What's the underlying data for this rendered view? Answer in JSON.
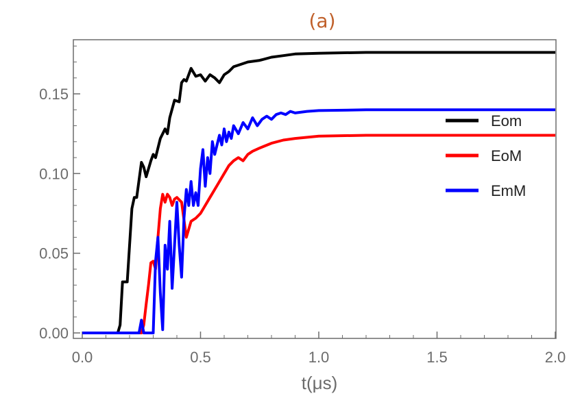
{
  "chart_data": {
    "type": "line",
    "title": "(a)",
    "xlabel": "t(μs)",
    "ylabel": "",
    "xlim": [
      0,
      2.0
    ],
    "ylim": [
      0,
      0.18
    ],
    "x_ticks": [
      "0.0",
      "0.5",
      "1.0",
      "1.5",
      "2.0"
    ],
    "y_ticks": [
      "0.00",
      "0.05",
      "0.10",
      "0.15"
    ],
    "grid": false,
    "legend_position": "right",
    "series": [
      {
        "name": "Eom",
        "color": "#000000",
        "points": [
          [
            0,
            0
          ],
          [
            0.05,
            0
          ],
          [
            0.1,
            0
          ],
          [
            0.15,
            0
          ],
          [
            0.16,
            0.005
          ],
          [
            0.17,
            0.032
          ],
          [
            0.19,
            0.032
          ],
          [
            0.2,
            0.055
          ],
          [
            0.21,
            0.078
          ],
          [
            0.22,
            0.085
          ],
          [
            0.23,
            0.085
          ],
          [
            0.25,
            0.107
          ],
          [
            0.26,
            0.104
          ],
          [
            0.27,
            0.098
          ],
          [
            0.29,
            0.108
          ],
          [
            0.3,
            0.112
          ],
          [
            0.31,
            0.11
          ],
          [
            0.33,
            0.122
          ],
          [
            0.35,
            0.128
          ],
          [
            0.36,
            0.125
          ],
          [
            0.37,
            0.135
          ],
          [
            0.39,
            0.146
          ],
          [
            0.41,
            0.145
          ],
          [
            0.42,
            0.157
          ],
          [
            0.43,
            0.159
          ],
          [
            0.44,
            0.158
          ],
          [
            0.46,
            0.166
          ],
          [
            0.48,
            0.161
          ],
          [
            0.5,
            0.162
          ],
          [
            0.52,
            0.158
          ],
          [
            0.54,
            0.162
          ],
          [
            0.56,
            0.16
          ],
          [
            0.58,
            0.157
          ],
          [
            0.6,
            0.162
          ],
          [
            0.62,
            0.164
          ],
          [
            0.64,
            0.167
          ],
          [
            0.66,
            0.168
          ],
          [
            0.7,
            0.17
          ],
          [
            0.75,
            0.171
          ],
          [
            0.8,
            0.173
          ],
          [
            0.85,
            0.174
          ],
          [
            0.9,
            0.175
          ],
          [
            1.0,
            0.1755
          ],
          [
            1.2,
            0.176
          ],
          [
            1.5,
            0.176
          ],
          [
            2.0,
            0.176
          ]
        ]
      },
      {
        "name": "EoM",
        "color": "#ff0000",
        "points": [
          [
            0,
            0
          ],
          [
            0.1,
            0
          ],
          [
            0.2,
            0
          ],
          [
            0.25,
            0
          ],
          [
            0.26,
            0.005
          ],
          [
            0.27,
            0.018
          ],
          [
            0.28,
            0.03
          ],
          [
            0.29,
            0.044
          ],
          [
            0.3,
            0.045
          ],
          [
            0.31,
            0.04
          ],
          [
            0.32,
            0.06
          ],
          [
            0.33,
            0.078
          ],
          [
            0.34,
            0.087
          ],
          [
            0.35,
            0.082
          ],
          [
            0.36,
            0.087
          ],
          [
            0.37,
            0.085
          ],
          [
            0.38,
            0.08
          ],
          [
            0.39,
            0.084
          ],
          [
            0.4,
            0.085
          ],
          [
            0.42,
            0.082
          ],
          [
            0.44,
            0.06
          ],
          [
            0.46,
            0.07
          ],
          [
            0.48,
            0.072
          ],
          [
            0.5,
            0.075
          ],
          [
            0.52,
            0.08
          ],
          [
            0.54,
            0.085
          ],
          [
            0.56,
            0.09
          ],
          [
            0.58,
            0.095
          ],
          [
            0.6,
            0.1
          ],
          [
            0.62,
            0.105
          ],
          [
            0.64,
            0.108
          ],
          [
            0.66,
            0.11
          ],
          [
            0.68,
            0.108
          ],
          [
            0.7,
            0.112
          ],
          [
            0.72,
            0.114
          ],
          [
            0.75,
            0.116
          ],
          [
            0.8,
            0.119
          ],
          [
            0.85,
            0.121
          ],
          [
            0.9,
            0.122
          ],
          [
            1.0,
            0.1235
          ],
          [
            1.2,
            0.124
          ],
          [
            1.5,
            0.124
          ],
          [
            2.0,
            0.124
          ]
        ]
      },
      {
        "name": "EmM",
        "color": "#0000ff",
        "points": [
          [
            0,
            0
          ],
          [
            0.1,
            0
          ],
          [
            0.2,
            0
          ],
          [
            0.24,
            0
          ],
          [
            0.25,
            0.008
          ],
          [
            0.26,
            0
          ],
          [
            0.3,
            0
          ],
          [
            0.31,
            0.045
          ],
          [
            0.32,
            0.06
          ],
          [
            0.33,
            0.025
          ],
          [
            0.34,
            0.002
          ],
          [
            0.35,
            0.055
          ],
          [
            0.36,
            0.04
          ],
          [
            0.37,
            0.07
          ],
          [
            0.38,
            0.028
          ],
          [
            0.39,
            0.055
          ],
          [
            0.4,
            0.082
          ],
          [
            0.41,
            0.055
          ],
          [
            0.42,
            0.035
          ],
          [
            0.43,
            0.072
          ],
          [
            0.44,
            0.09
          ],
          [
            0.45,
            0.08
          ],
          [
            0.46,
            0.095
          ],
          [
            0.47,
            0.08
          ],
          [
            0.48,
            0.088
          ],
          [
            0.49,
            0.08
          ],
          [
            0.5,
            0.103
          ],
          [
            0.51,
            0.115
          ],
          [
            0.52,
            0.092
          ],
          [
            0.53,
            0.11
          ],
          [
            0.54,
            0.1
          ],
          [
            0.55,
            0.12
          ],
          [
            0.56,
            0.112
          ],
          [
            0.57,
            0.118
          ],
          [
            0.58,
            0.124
          ],
          [
            0.59,
            0.118
          ],
          [
            0.6,
            0.128
          ],
          [
            0.61,
            0.12
          ],
          [
            0.62,
            0.126
          ],
          [
            0.63,
            0.122
          ],
          [
            0.64,
            0.13
          ],
          [
            0.66,
            0.125
          ],
          [
            0.68,
            0.132
          ],
          [
            0.7,
            0.128
          ],
          [
            0.72,
            0.135
          ],
          [
            0.74,
            0.13
          ],
          [
            0.76,
            0.134
          ],
          [
            0.78,
            0.136
          ],
          [
            0.8,
            0.134
          ],
          [
            0.82,
            0.137
          ],
          [
            0.84,
            0.138
          ],
          [
            0.86,
            0.137
          ],
          [
            0.88,
            0.139
          ],
          [
            0.9,
            0.138
          ],
          [
            0.95,
            0.139
          ],
          [
            1.0,
            0.1395
          ],
          [
            1.2,
            0.14
          ],
          [
            1.5,
            0.14
          ],
          [
            2.0,
            0.14
          ]
        ]
      }
    ]
  }
}
